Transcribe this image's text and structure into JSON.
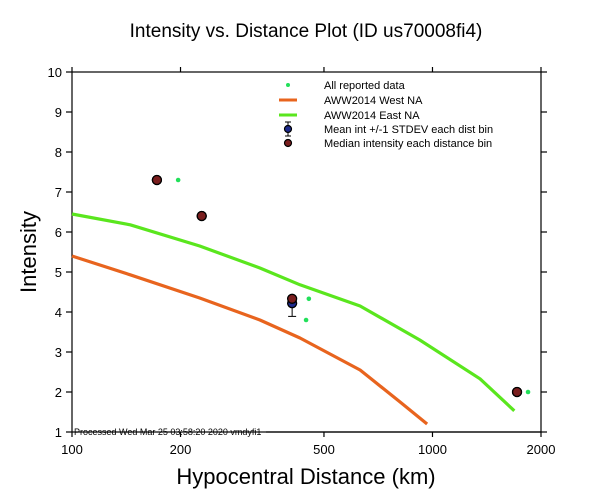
{
  "chart_data": {
    "type": "scatter",
    "title": "Intensity vs. Distance Plot (ID us70008fi4)",
    "xlabel": "Hypocentral Distance (km)",
    "ylabel": "Intensity",
    "xscale": "log",
    "xlim": [
      100,
      2000
    ],
    "ylim": [
      1,
      10
    ],
    "xticks": [
      100,
      200,
      500,
      1000,
      2000
    ],
    "xtick_labels": [
      "100",
      "200",
      "500",
      "1000",
      "2000"
    ],
    "yticks": [
      1,
      2,
      3,
      4,
      5,
      6,
      7,
      8,
      9,
      10
    ],
    "ytick_labels": [
      "1",
      "2",
      "3",
      "4",
      "5",
      "6",
      "7",
      "8",
      "9",
      "10"
    ],
    "grid": false,
    "legend_position": "top-right",
    "annotation": "Processed Wed Mar 25 03:58:20 2020 vmdyfi1",
    "series": [
      {
        "name": "All reported data",
        "kind": "points",
        "color": "#22e05a",
        "x": [
          197,
          229,
          454,
          446,
          1841
        ],
        "y": [
          7.3,
          6.4,
          4.33,
          3.8,
          2.0
        ]
      },
      {
        "name": "AWW2014 West NA",
        "kind": "line",
        "color": "#e8641e",
        "x": [
          100,
          145,
          226,
          332,
          429,
          630,
          813,
          966
        ],
        "y": [
          5.4,
          4.93,
          4.35,
          3.8,
          3.35,
          2.55,
          1.75,
          1.2
        ]
      },
      {
        "name": "AWW2014 East NA",
        "kind": "line",
        "color": "#5ae61e",
        "x": [
          100,
          145,
          226,
          332,
          429,
          630,
          922,
          1355,
          1686
        ],
        "y": [
          6.45,
          6.18,
          5.65,
          5.1,
          4.68,
          4.15,
          3.3,
          2.33,
          1.53
        ]
      },
      {
        "name": "Mean int +/-1 STDEV each dist bin",
        "kind": "errorbar",
        "color": "#1e2a8c",
        "x": [
          172,
          229,
          408,
          1716
        ],
        "y": [
          7.3,
          6.4,
          4.22,
          2.0
        ],
        "err": [
          0,
          0,
          0.18,
          0
        ]
      },
      {
        "name": "Median intensity each distance bin",
        "kind": "points",
        "color": "#7a1e1e",
        "x": [
          172,
          229,
          408,
          1716
        ],
        "y": [
          7.3,
          6.4,
          4.33,
          2.0
        ]
      }
    ]
  }
}
